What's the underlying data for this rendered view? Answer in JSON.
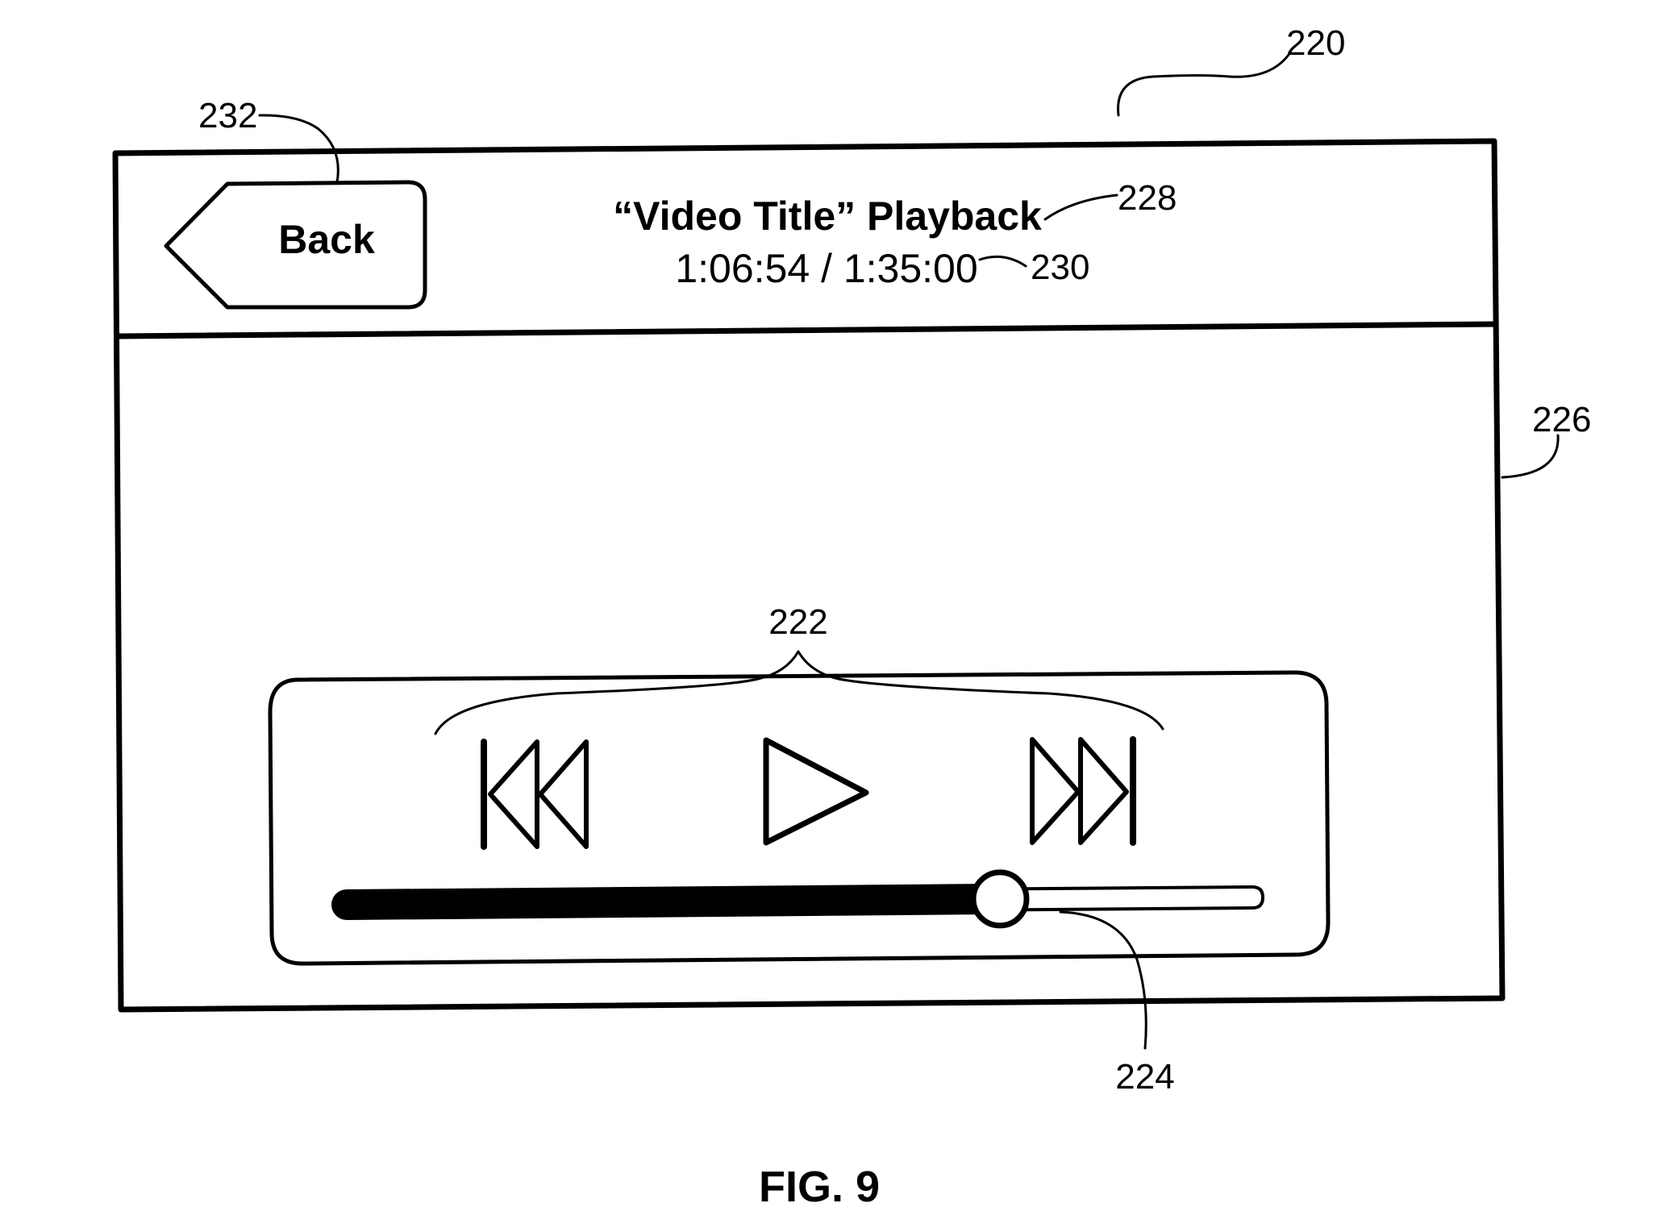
{
  "figure_label": "FIG. 9",
  "header": {
    "title": "“Video Title” Playback",
    "time_display": "1:06:54 / 1:35:00",
    "back_label": "Back"
  },
  "playback": {
    "elapsed": "1:06:54",
    "total": "1:35:00",
    "progress_fraction": 0.713
  },
  "controls": {
    "rewind_icon": "skip-back-icon",
    "play_icon": "play-icon",
    "forward_icon": "skip-forward-icon"
  },
  "reference_numerals": {
    "device": "220",
    "controls_group": "222",
    "progress_bar": "224",
    "display_area": "226",
    "title": "228",
    "time": "230",
    "back_button": "232"
  }
}
